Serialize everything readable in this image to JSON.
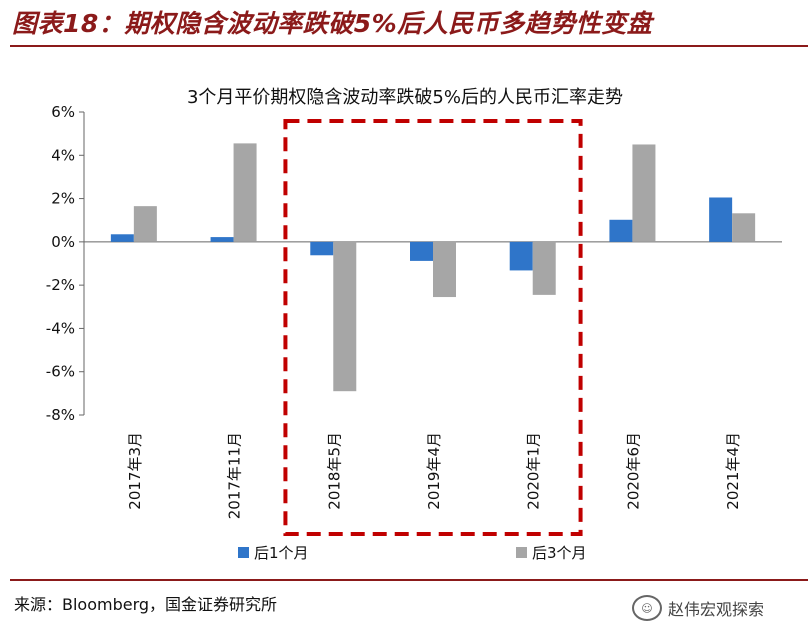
{
  "figure": {
    "title": "图表18：期权隐含波动率跌破5%后人民币多趋势性变盘",
    "source": "来源：Bloomberg，国金证券研究所",
    "watermark": "赵伟宏观探索"
  },
  "chart_data": {
    "type": "bar",
    "title": "3个月平价期权隐含波动率跌破5%后的人民币汇率走势",
    "categories": [
      "2017年3月",
      "2017年11月",
      "2018年5月",
      "2019年4月",
      "2020年1月",
      "2020年6月",
      "2021年4月"
    ],
    "series": [
      {
        "name": "后1个月",
        "color": "#2f75c9",
        "values": [
          0.35,
          0.22,
          -0.62,
          -0.88,
          -1.32,
          1.02,
          2.05
        ]
      },
      {
        "name": "后3个月",
        "color": "#a6a6a6",
        "values": [
          1.65,
          4.55,
          -6.9,
          -2.55,
          -2.45,
          4.5,
          1.32
        ]
      }
    ],
    "y_ticks": [
      "6%",
      "4%",
      "2%",
      "0%",
      "-2%",
      "-4%",
      "-6%",
      "-8%"
    ],
    "ylim": [
      -8,
      6
    ],
    "grid": false,
    "legend": "bottom",
    "highlight": {
      "from_category": "2018年5月",
      "to_category": "2020年1月",
      "style": "dashed-box",
      "color": "#c00000"
    }
  }
}
